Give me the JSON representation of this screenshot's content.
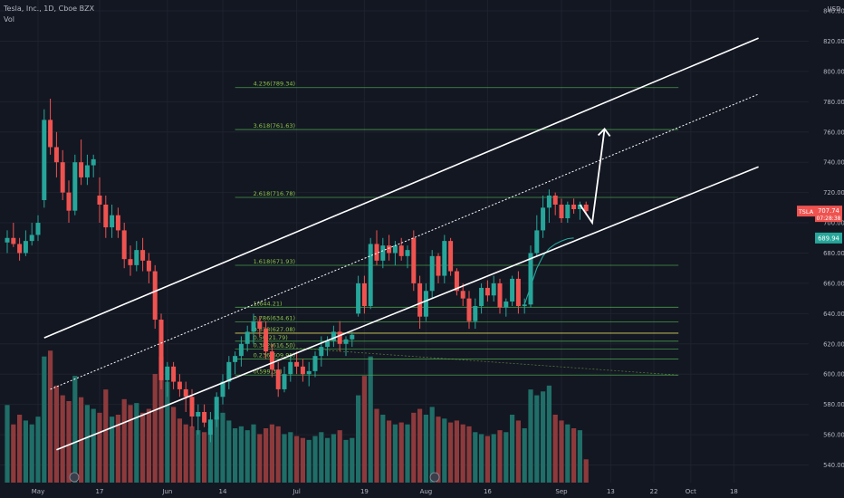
{
  "header": {
    "symbol_line": "Tesla, Inc., 1D, Cboe BZX",
    "volume_label": "Vol"
  },
  "colors": {
    "background": "#131722",
    "up": "#26a69a",
    "down": "#ef5350",
    "up_volume": "#1f6e67",
    "down_volume": "#8d3a3c",
    "fib_line": "#4caf50",
    "fib_text": "#8bc34a",
    "channel": "#ffffff",
    "price_tag": "#ef5350",
    "ma_tag": "#26a69a"
  },
  "chart_data": {
    "type": "candlestick",
    "currency_label": "USD",
    "y_ticks": [
      540,
      560,
      580,
      600,
      620,
      640,
      660,
      680,
      700,
      720,
      740,
      760,
      780,
      800,
      820,
      840
    ],
    "y_tick_labels": [
      "540.00",
      "560.00",
      "580.00",
      "600.00",
      "620.00",
      "640.00",
      "660.00",
      "680.00",
      "700.00",
      "720.00",
      "740.00",
      "760.00",
      "780.00",
      "800.00",
      "820.00",
      "840.00"
    ],
    "x_ticks": [
      {
        "label": "19",
        "index": -3
      },
      {
        "label": "May",
        "index": 5
      },
      {
        "label": "17",
        "index": 15
      },
      {
        "label": "Jun",
        "index": 26
      },
      {
        "label": "14",
        "index": 35
      },
      {
        "label": "Jul",
        "index": 47
      },
      {
        "label": "19",
        "index": 58
      },
      {
        "label": "Aug",
        "index": 68
      },
      {
        "label": "16",
        "index": 78
      },
      {
        "label": "Sep",
        "index": 90
      },
      {
        "label": "13",
        "index": 98
      },
      {
        "label": "22",
        "index": 105
      },
      {
        "label": "Oct",
        "index": 111
      },
      {
        "label": "18",
        "index": 118
      }
    ],
    "candles": [
      {
        "o": 687,
        "h": 695,
        "l": 680,
        "c": 690,
        "v": 4
      },
      {
        "o": 690,
        "h": 700,
        "l": 684,
        "c": 686,
        "v": 3
      },
      {
        "o": 686,
        "h": 690,
        "l": 675,
        "c": 680,
        "v": 3.5
      },
      {
        "o": 680,
        "h": 695,
        "l": 678,
        "c": 688,
        "v": 3.2
      },
      {
        "o": 688,
        "h": 700,
        "l": 685,
        "c": 692,
        "v": 3
      },
      {
        "o": 692,
        "h": 705,
        "l": 688,
        "c": 700,
        "v": 3.4
      },
      {
        "o": 715,
        "h": 775,
        "l": 710,
        "c": 768,
        "v": 6.5
      },
      {
        "o": 768,
        "h": 782,
        "l": 745,
        "c": 750,
        "v": 6.8
      },
      {
        "o": 750,
        "h": 760,
        "l": 730,
        "c": 740,
        "v": 5
      },
      {
        "o": 740,
        "h": 748,
        "l": 715,
        "c": 720,
        "v": 4.5
      },
      {
        "o": 720,
        "h": 728,
        "l": 700,
        "c": 708,
        "v": 4.2
      },
      {
        "o": 708,
        "h": 745,
        "l": 705,
        "c": 740,
        "v": 5.5
      },
      {
        "o": 740,
        "h": 755,
        "l": 725,
        "c": 730,
        "v": 4.4
      },
      {
        "o": 730,
        "h": 745,
        "l": 725,
        "c": 738,
        "v": 4
      },
      {
        "o": 738,
        "h": 745,
        "l": 730,
        "c": 742,
        "v": 3.8
      },
      {
        "o": 718,
        "h": 730,
        "l": 700,
        "c": 712,
        "v": 3.6
      },
      {
        "o": 712,
        "h": 718,
        "l": 690,
        "c": 697,
        "v": 4.8
      },
      {
        "o": 697,
        "h": 712,
        "l": 690,
        "c": 705,
        "v": 3.4
      },
      {
        "o": 705,
        "h": 710,
        "l": 690,
        "c": 695,
        "v": 3.5
      },
      {
        "o": 695,
        "h": 700,
        "l": 670,
        "c": 676,
        "v": 4.3
      },
      {
        "o": 676,
        "h": 685,
        "l": 665,
        "c": 672,
        "v": 4
      },
      {
        "o": 672,
        "h": 688,
        "l": 668,
        "c": 682,
        "v": 4.1
      },
      {
        "o": 682,
        "h": 690,
        "l": 668,
        "c": 675,
        "v": 3.6
      },
      {
        "o": 675,
        "h": 680,
        "l": 660,
        "c": 668,
        "v": 3.8
      },
      {
        "o": 668,
        "h": 672,
        "l": 630,
        "c": 636,
        "v": 5.6
      },
      {
        "o": 636,
        "h": 640,
        "l": 590,
        "c": 596,
        "v": 6.5
      },
      {
        "o": 596,
        "h": 608,
        "l": 585,
        "c": 605,
        "v": 5.2
      },
      {
        "o": 605,
        "h": 608,
        "l": 590,
        "c": 595,
        "v": 3.9
      },
      {
        "o": 595,
        "h": 600,
        "l": 585,
        "c": 590,
        "v": 3.3
      },
      {
        "o": 590,
        "h": 595,
        "l": 575,
        "c": 585,
        "v": 3
      },
      {
        "o": 585,
        "h": 590,
        "l": 565,
        "c": 572,
        "v": 2.9
      },
      {
        "o": 572,
        "h": 580,
        "l": 560,
        "c": 575,
        "v": 2.7
      },
      {
        "o": 575,
        "h": 580,
        "l": 565,
        "c": 568,
        "v": 2.6
      },
      {
        "o": 560,
        "h": 575,
        "l": 555,
        "c": 570,
        "v": 2.8
      },
      {
        "o": 570,
        "h": 588,
        "l": 565,
        "c": 585,
        "v": 3.4
      },
      {
        "o": 585,
        "h": 600,
        "l": 580,
        "c": 595,
        "v": 3.6
      },
      {
        "o": 595,
        "h": 612,
        "l": 590,
        "c": 608,
        "v": 3.2
      },
      {
        "o": 608,
        "h": 615,
        "l": 600,
        "c": 612,
        "v": 2.8
      },
      {
        "o": 612,
        "h": 625,
        "l": 605,
        "c": 620,
        "v": 2.9
      },
      {
        "o": 620,
        "h": 632,
        "l": 615,
        "c": 628,
        "v": 2.7
      },
      {
        "o": 628,
        "h": 640,
        "l": 620,
        "c": 635,
        "v": 3
      },
      {
        "o": 635,
        "h": 638,
        "l": 625,
        "c": 630,
        "v": 2.5
      },
      {
        "o": 630,
        "h": 635,
        "l": 610,
        "c": 615,
        "v": 2.8
      },
      {
        "o": 615,
        "h": 620,
        "l": 598,
        "c": 603,
        "v": 3
      },
      {
        "o": 603,
        "h": 608,
        "l": 585,
        "c": 590,
        "v": 2.9
      },
      {
        "o": 590,
        "h": 605,
        "l": 588,
        "c": 600,
        "v": 2.5
      },
      {
        "o": 600,
        "h": 612,
        "l": 595,
        "c": 608,
        "v": 2.6
      },
      {
        "o": 608,
        "h": 615,
        "l": 600,
        "c": 605,
        "v": 2.4
      },
      {
        "o": 605,
        "h": 610,
        "l": 595,
        "c": 600,
        "v": 2.3
      },
      {
        "o": 600,
        "h": 608,
        "l": 592,
        "c": 602,
        "v": 2.2
      },
      {
        "o": 602,
        "h": 615,
        "l": 598,
        "c": 612,
        "v": 2.4
      },
      {
        "o": 612,
        "h": 625,
        "l": 605,
        "c": 618,
        "v": 2.6
      },
      {
        "o": 618,
        "h": 625,
        "l": 612,
        "c": 622,
        "v": 2.3
      },
      {
        "o": 622,
        "h": 632,
        "l": 618,
        "c": 628,
        "v": 2.5
      },
      {
        "o": 628,
        "h": 635,
        "l": 615,
        "c": 620,
        "v": 2.7
      },
      {
        "o": 620,
        "h": 625,
        "l": 612,
        "c": 623,
        "v": 2.2
      },
      {
        "o": 623,
        "h": 628,
        "l": 618,
        "c": 626,
        "v": 2.3
      },
      {
        "o": 640,
        "h": 665,
        "l": 638,
        "c": 660,
        "v": 4.5
      },
      {
        "o": 660,
        "h": 665,
        "l": 640,
        "c": 645,
        "v": 5.5
      },
      {
        "o": 645,
        "h": 690,
        "l": 643,
        "c": 686,
        "v": 6.5
      },
      {
        "o": 686,
        "h": 695,
        "l": 672,
        "c": 675,
        "v": 3.8
      },
      {
        "o": 675,
        "h": 690,
        "l": 670,
        "c": 685,
        "v": 3.5
      },
      {
        "o": 685,
        "h": 692,
        "l": 675,
        "c": 680,
        "v": 3.2
      },
      {
        "o": 680,
        "h": 688,
        "l": 672,
        "c": 685,
        "v": 3
      },
      {
        "o": 685,
        "h": 690,
        "l": 675,
        "c": 678,
        "v": 3.1
      },
      {
        "o": 678,
        "h": 685,
        "l": 670,
        "c": 682,
        "v": 3
      },
      {
        "o": 690,
        "h": 695,
        "l": 655,
        "c": 660,
        "v": 3.6
      },
      {
        "o": 660,
        "h": 665,
        "l": 630,
        "c": 638,
        "v": 3.8
      },
      {
        "o": 638,
        "h": 660,
        "l": 635,
        "c": 655,
        "v": 3.5
      },
      {
        "o": 655,
        "h": 682,
        "l": 650,
        "c": 678,
        "v": 3.9
      },
      {
        "o": 678,
        "h": 680,
        "l": 660,
        "c": 665,
        "v": 3.4
      },
      {
        "o": 665,
        "h": 692,
        "l": 660,
        "c": 688,
        "v": 3.3
      },
      {
        "o": 688,
        "h": 690,
        "l": 665,
        "c": 668,
        "v": 3.1
      },
      {
        "o": 668,
        "h": 670,
        "l": 652,
        "c": 655,
        "v": 3.2
      },
      {
        "o": 655,
        "h": 660,
        "l": 645,
        "c": 650,
        "v": 3
      },
      {
        "o": 650,
        "h": 655,
        "l": 630,
        "c": 635,
        "v": 2.9
      },
      {
        "o": 635,
        "h": 650,
        "l": 630,
        "c": 645,
        "v": 2.6
      },
      {
        "o": 645,
        "h": 660,
        "l": 640,
        "c": 657,
        "v": 2.5
      },
      {
        "o": 657,
        "h": 662,
        "l": 648,
        "c": 652,
        "v": 2.4
      },
      {
        "o": 652,
        "h": 665,
        "l": 648,
        "c": 660,
        "v": 2.5
      },
      {
        "o": 660,
        "h": 663,
        "l": 640,
        "c": 644,
        "v": 2.7
      },
      {
        "o": 644,
        "h": 650,
        "l": 638,
        "c": 648,
        "v": 2.6
      },
      {
        "o": 648,
        "h": 665,
        "l": 645,
        "c": 663,
        "v": 3.5
      },
      {
        "o": 663,
        "h": 668,
        "l": 640,
        "c": 645,
        "v": 3.2
      },
      {
        "o": 645,
        "h": 650,
        "l": 640,
        "c": 646,
        "v": 2.8
      },
      {
        "o": 646,
        "h": 685,
        "l": 644,
        "c": 680,
        "v": 4.8
      },
      {
        "o": 680,
        "h": 705,
        "l": 678,
        "c": 695,
        "v": 4.5
      },
      {
        "o": 695,
        "h": 718,
        "l": 690,
        "c": 710,
        "v": 4.7
      },
      {
        "o": 710,
        "h": 722,
        "l": 700,
        "c": 718,
        "v": 5
      },
      {
        "o": 718,
        "h": 720,
        "l": 705,
        "c": 712,
        "v": 3.5
      },
      {
        "o": 712,
        "h": 716,
        "l": 700,
        "c": 703,
        "v": 3.2
      },
      {
        "o": 703,
        "h": 714,
        "l": 700,
        "c": 712,
        "v": 3
      },
      {
        "o": 712,
        "h": 716,
        "l": 706,
        "c": 709,
        "v": 2.8
      },
      {
        "o": 709,
        "h": 714,
        "l": 702,
        "c": 712,
        "v": 2.7
      },
      {
        "o": 712,
        "h": 714,
        "l": 705,
        "c": 707.74,
        "v": 1.2
      }
    ],
    "fib_levels": [
      {
        "ratio": "4.236",
        "price": 789.34,
        "label": "4.236(789.34)"
      },
      {
        "ratio": "3.618",
        "price": 761.63,
        "label": "3.618(761.63)"
      },
      {
        "ratio": "2.618",
        "price": 716.78,
        "label": "2.618(716.78)"
      },
      {
        "ratio": "1.618",
        "price": 671.93,
        "label": "1.618(671.93)"
      },
      {
        "ratio": "1",
        "price": 644.21,
        "label": "1(644.21)"
      },
      {
        "ratio": "0.786",
        "price": 634.61,
        "label": "0.786(634.61)"
      },
      {
        "ratio": "0.618",
        "price": 627.08,
        "label": "0.618(627.08)"
      },
      {
        "ratio": "0.5",
        "price": 621.79,
        "label": "0.5(621.79)"
      },
      {
        "ratio": "0.382",
        "price": 616.5,
        "label": "0.382(616.50)"
      },
      {
        "ratio": "0.236",
        "price": 609.95,
        "label": "0.236(609.95)"
      },
      {
        "ratio": "0",
        "price": 599.36,
        "label": "0(599.36)"
      }
    ],
    "channel": {
      "upper": [
        {
          "i": 6,
          "p": 624
        },
        {
          "i": 122,
          "p": 822
        }
      ],
      "middle": [
        {
          "i": 7,
          "p": 590
        },
        {
          "i": 122,
          "p": 785
        }
      ],
      "lower": [
        {
          "i": 8,
          "p": 550
        },
        {
          "i": 122,
          "p": 737
        }
      ]
    },
    "projection_arrow": [
      {
        "i": 95,
        "p": 700
      },
      {
        "i": 93,
        "p": 712
      },
      {
        "i": 97,
        "p": 762
      }
    ],
    "last_price": {
      "symbol": "TSLA",
      "price": "707.74",
      "countdown": "07:28:38"
    },
    "ma_price": {
      "price": "689.94",
      "value": 689.94
    }
  }
}
